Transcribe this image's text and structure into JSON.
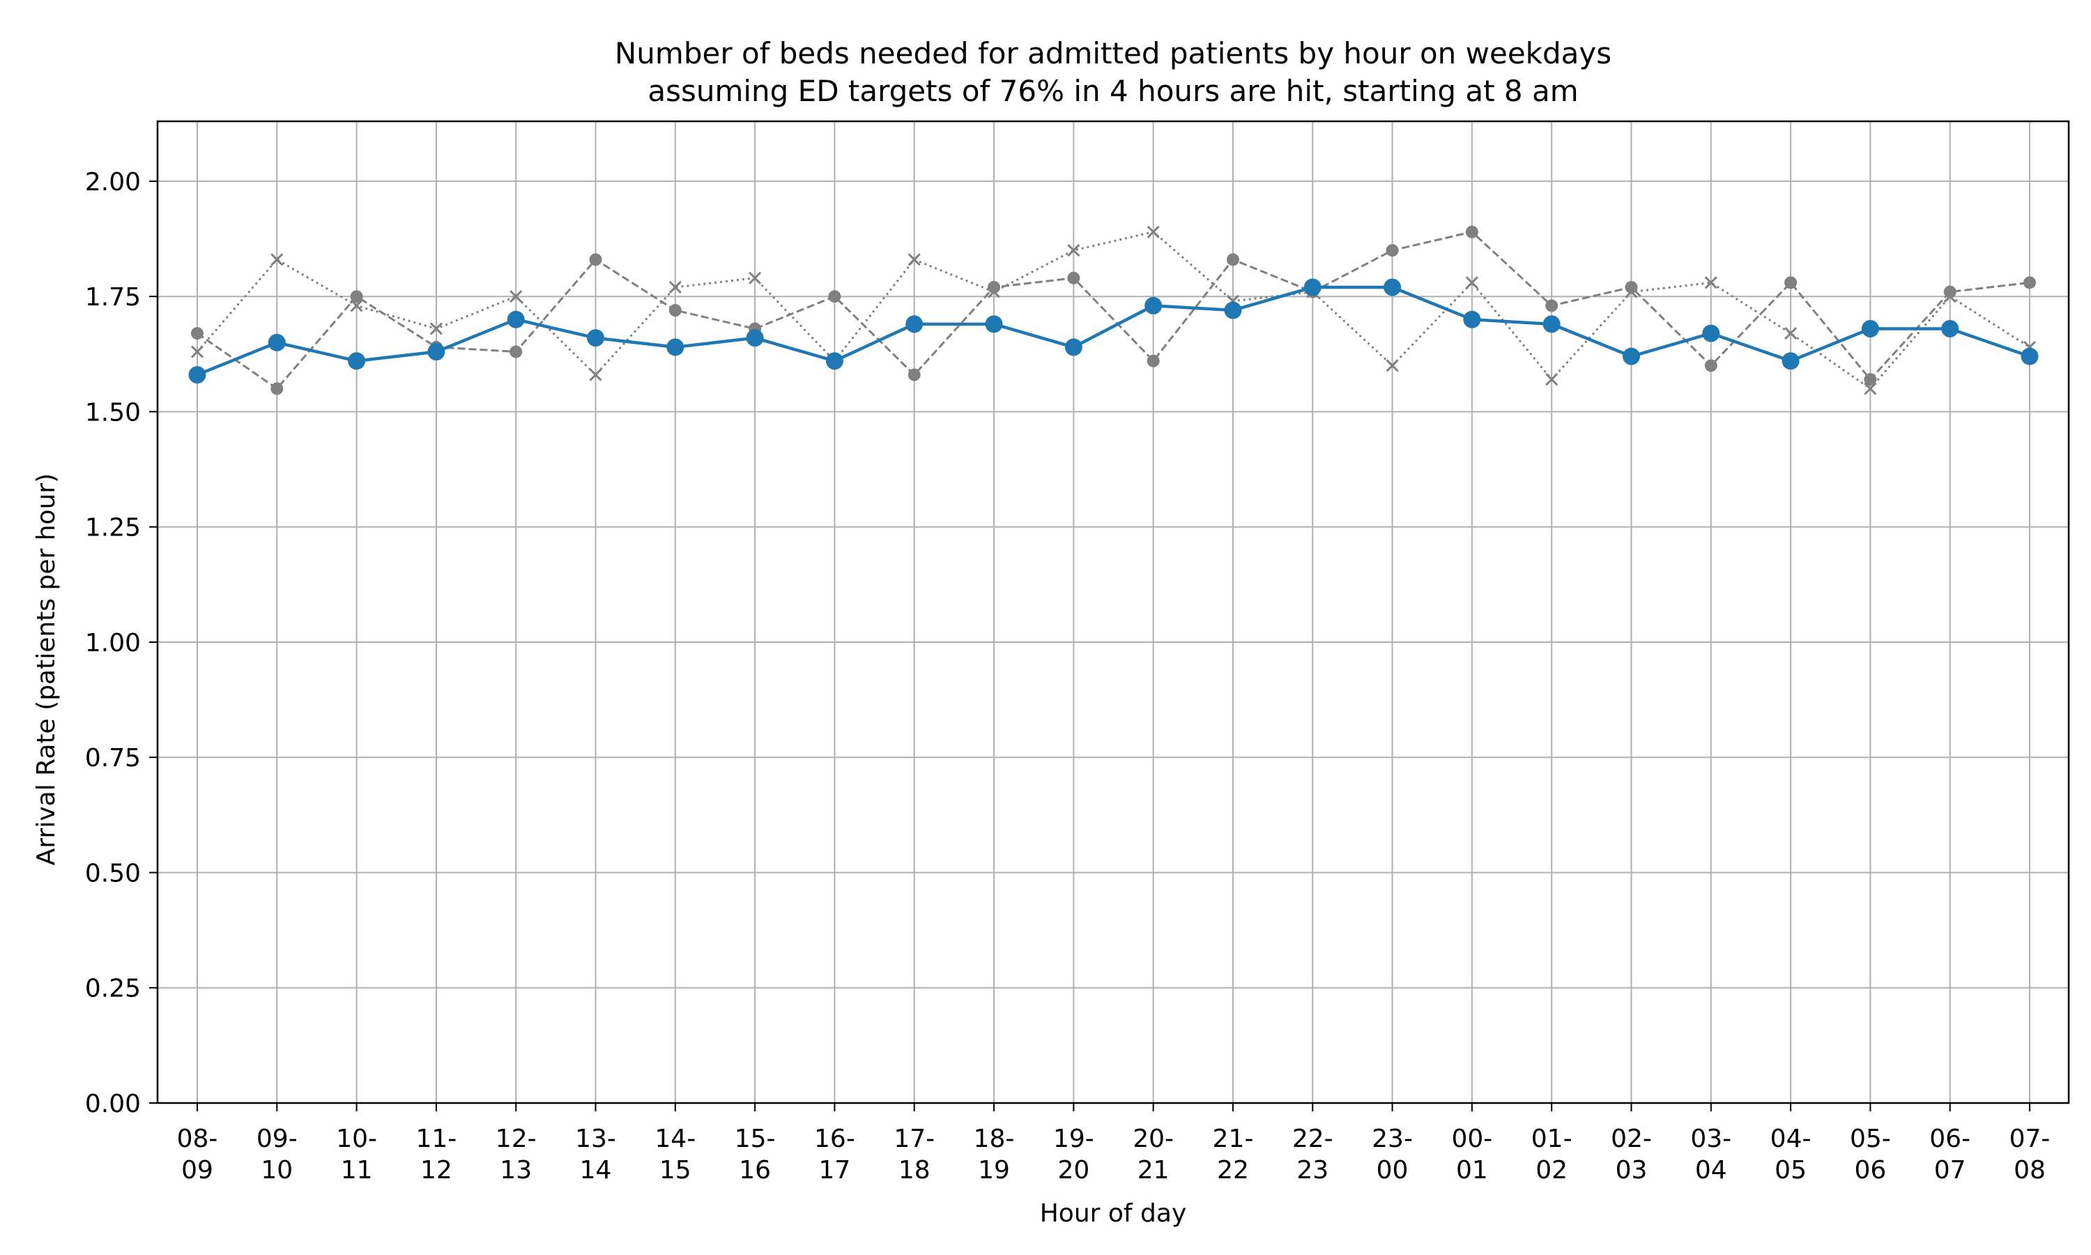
{
  "chart_data": {
    "type": "line",
    "title": "Number of beds needed for admitted patients by hour on weekdays",
    "subtitle": "assuming ED targets of 76% in 4 hours are hit, starting at 8 am",
    "xlabel": "Hour of day",
    "ylabel": "Arrival Rate (patients per hour)",
    "ylim": [
      0,
      2.13
    ],
    "yticks": [
      "0.00",
      "0.25",
      "0.50",
      "0.75",
      "1.00",
      "1.25",
      "1.50",
      "1.75",
      "2.00"
    ],
    "grid": true,
    "categories": [
      [
        "08-",
        "09"
      ],
      [
        "09-",
        "10"
      ],
      [
        "10-",
        "11"
      ],
      [
        "11-",
        "12"
      ],
      [
        "12-",
        "13"
      ],
      [
        "13-",
        "14"
      ],
      [
        "14-",
        "15"
      ],
      [
        "15-",
        "16"
      ],
      [
        "16-",
        "17"
      ],
      [
        "17-",
        "18"
      ],
      [
        "18-",
        "19"
      ],
      [
        "19-",
        "20"
      ],
      [
        "20-",
        "21"
      ],
      [
        "21-",
        "22"
      ],
      [
        "22-",
        "23"
      ],
      [
        "23-",
        "00"
      ],
      [
        "00-",
        "01"
      ],
      [
        "01-",
        "02"
      ],
      [
        "02-",
        "03"
      ],
      [
        "03-",
        "04"
      ],
      [
        "04-",
        "05"
      ],
      [
        "05-",
        "06"
      ],
      [
        "06-",
        "07"
      ],
      [
        "07-",
        "08"
      ]
    ],
    "series": [
      {
        "style": "dotted-x",
        "color": "#808080",
        "values": [
          1.63,
          1.83,
          1.73,
          1.68,
          1.75,
          1.58,
          1.77,
          1.79,
          1.61,
          1.83,
          1.76,
          1.85,
          1.89,
          1.74,
          1.76,
          1.6,
          1.78,
          1.57,
          1.76,
          1.78,
          1.67,
          1.55,
          1.75,
          1.64
        ]
      },
      {
        "style": "dashed-dot",
        "color": "#808080",
        "values": [
          1.67,
          1.55,
          1.75,
          1.64,
          1.63,
          1.83,
          1.72,
          1.68,
          1.75,
          1.58,
          1.77,
          1.79,
          1.61,
          1.83,
          1.76,
          1.85,
          1.89,
          1.73,
          1.77,
          1.6,
          1.78,
          1.57,
          1.76,
          1.78
        ]
      },
      {
        "style": "solid-marker",
        "color": "#1f77b4",
        "values": [
          1.58,
          1.65,
          1.61,
          1.63,
          1.7,
          1.66,
          1.64,
          1.66,
          1.61,
          1.69,
          1.69,
          1.64,
          1.73,
          1.72,
          1.77,
          1.77,
          1.7,
          1.69,
          1.62,
          1.67,
          1.61,
          1.68,
          1.68,
          1.62
        ]
      }
    ]
  }
}
